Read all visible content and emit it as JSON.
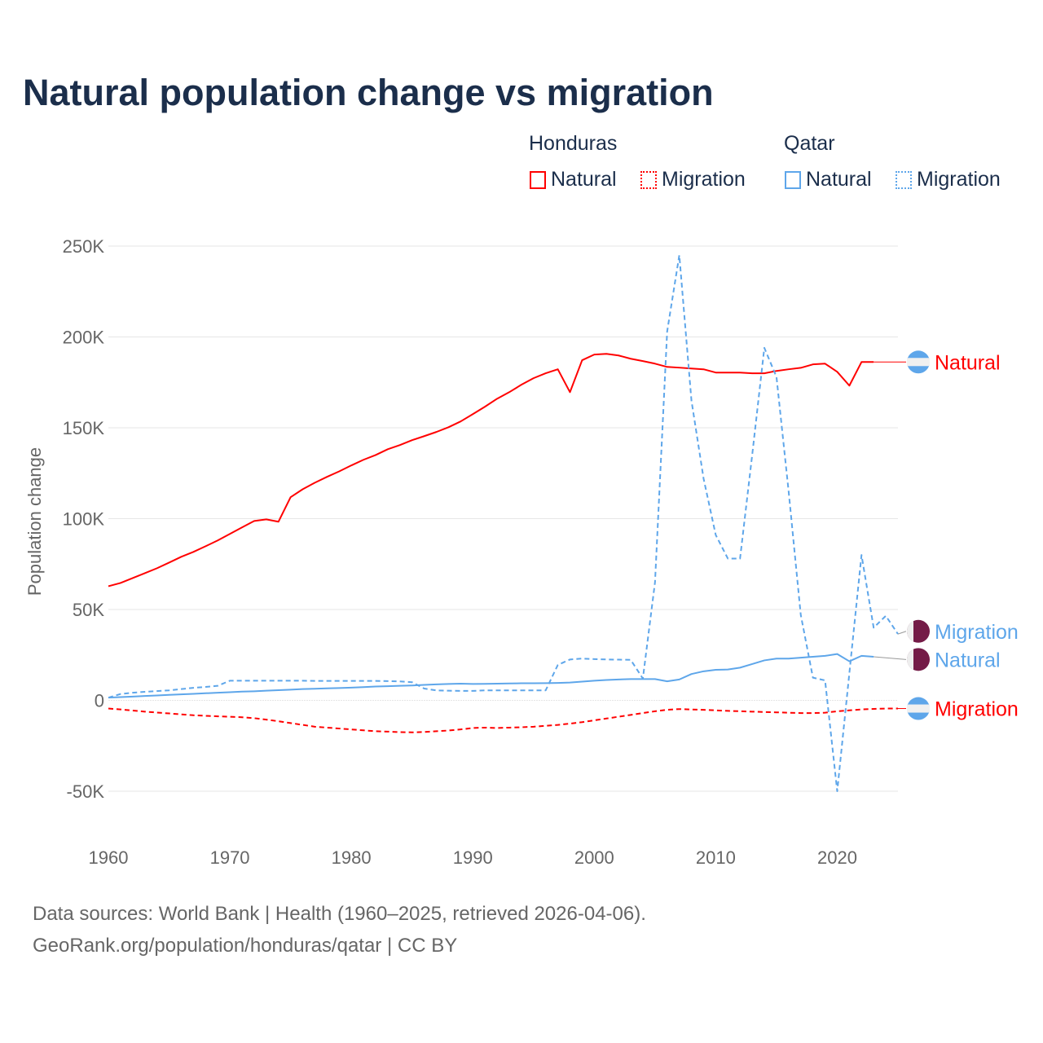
{
  "title": "Natural population change vs migration",
  "legend": {
    "groups": [
      {
        "name": "Honduras",
        "items": [
          {
            "label": "Natural",
            "color": "#ff0000",
            "style": "solid"
          },
          {
            "label": "Migration",
            "color": "#ff0000",
            "style": "dotted"
          }
        ]
      },
      {
        "name": "Qatar",
        "items": [
          {
            "label": "Natural",
            "color": "#5ea6ea",
            "style": "solid"
          },
          {
            "label": "Migration",
            "color": "#5ea6ea",
            "style": "dotted"
          }
        ]
      }
    ]
  },
  "footer": {
    "line1": "Data sources: World Bank | Health (1960–2025, retrieved 2026-04-06).",
    "line2": "GeoRank.org/population/honduras/qatar | CC BY"
  },
  "chart_data": {
    "type": "line",
    "title": "Natural population change vs migration",
    "xlabel": "",
    "ylabel": "Population change",
    "xlim": [
      1960,
      2025
    ],
    "ylim": [
      -50000,
      250000
    ],
    "x_ticks": [
      "1960",
      "1970",
      "1980",
      "1990",
      "2000",
      "2010",
      "2020"
    ],
    "y_ticks": [
      {
        "v": 250000,
        "label": "250K"
      },
      {
        "v": 200000,
        "label": "200K"
      },
      {
        "v": 150000,
        "label": "150K"
      },
      {
        "v": 100000,
        "label": "100K"
      },
      {
        "v": 50000,
        "label": "50K"
      },
      {
        "v": 0,
        "label": "0"
      },
      {
        "v": -50000,
        "label": "-50K"
      }
    ],
    "grid": true,
    "series": [
      {
        "name": "Honduras Natural",
        "end_label": "Natural",
        "country": "Honduras",
        "color": "#ff0000",
        "dash": false,
        "start": 1960,
        "values": [
          62800,
          64600,
          67300,
          70000,
          72700,
          75800,
          79000,
          81700,
          84800,
          88000,
          91600,
          95200,
          98700,
          99600,
          98300,
          111800,
          116200,
          119800,
          123000,
          126000,
          129300,
          132400,
          135000,
          138200,
          140500,
          143200,
          145400,
          147700,
          150300,
          153500,
          157500,
          161600,
          166000,
          169600,
          173700,
          177300,
          180000,
          182200,
          169600,
          187200,
          190300,
          190700,
          189800,
          188000,
          186700,
          185300,
          183500,
          183100,
          182600,
          182200,
          180400,
          180400,
          180400,
          180000,
          180000,
          181300,
          182200,
          183000,
          184900,
          185300,
          180800,
          173200,
          186200,
          186200
        ]
      },
      {
        "name": "Honduras Migration",
        "end_label": "Migration",
        "country": "Honduras",
        "color": "#ff0000",
        "dash": true,
        "start": 1960,
        "values": [
          -4500,
          -5000,
          -5600,
          -6200,
          -6700,
          -7200,
          -7700,
          -8200,
          -8500,
          -8800,
          -9000,
          -9300,
          -9800,
          -10600,
          -11500,
          -12500,
          -13500,
          -14500,
          -15000,
          -15500,
          -16000,
          -16500,
          -17000,
          -17200,
          -17500,
          -17600,
          -17400,
          -17000,
          -16600,
          -16000,
          -15200,
          -15000,
          -15200,
          -15000,
          -14800,
          -14500,
          -14000,
          -13500,
          -12800,
          -12000,
          -11000,
          -10000,
          -9000,
          -8000,
          -7000,
          -6000,
          -5200,
          -4800,
          -5000,
          -5200,
          -5500,
          -5800,
          -6000,
          -6200,
          -6400,
          -6600,
          -6800,
          -7000,
          -7000,
          -6800,
          -6000,
          -5500,
          -5000,
          -4700,
          -4500,
          -4500
        ]
      },
      {
        "name": "Qatar Natural",
        "end_label": "Natural",
        "country": "Qatar",
        "color": "#5ea6ea",
        "dash": false,
        "start": 1960,
        "values": [
          1500,
          1800,
          2100,
          2400,
          2700,
          3000,
          3300,
          3600,
          3900,
          4200,
          4500,
          4800,
          5000,
          5300,
          5600,
          5900,
          6200,
          6400,
          6600,
          6800,
          7000,
          7300,
          7600,
          7800,
          8000,
          8200,
          8500,
          8800,
          9000,
          9200,
          9000,
          9100,
          9200,
          9300,
          9400,
          9400,
          9500,
          9600,
          9800,
          10300,
          10800,
          11200,
          11500,
          11700,
          11700,
          11700,
          10500,
          11500,
          14500,
          16000,
          16800,
          17000,
          18000,
          20000,
          22000,
          23000,
          23000,
          23500,
          24000,
          24500,
          25500,
          21500,
          24500,
          24000
        ]
      },
      {
        "name": "Qatar Migration",
        "end_label": "Migration",
        "country": "Qatar",
        "color": "#5ea6ea",
        "dash": true,
        "start": 1960,
        "values": [
          1500,
          3500,
          4200,
          4700,
          5100,
          5500,
          6200,
          6900,
          7400,
          8000,
          10800,
          10800,
          10800,
          10800,
          10800,
          10800,
          10800,
          10700,
          10700,
          10700,
          10700,
          10700,
          10700,
          10600,
          10400,
          10000,
          6500,
          5500,
          5300,
          5200,
          5200,
          5500,
          5500,
          5500,
          5500,
          5500,
          5500,
          19500,
          22500,
          23000,
          22700,
          22500,
          22400,
          22300,
          12000,
          65000,
          203000,
          245000,
          165000,
          122000,
          91000,
          78000,
          78000,
          135000,
          194000,
          178000,
          115000,
          47000,
          12500,
          11000,
          -50000,
          15000,
          80000,
          40000,
          46500,
          36500
        ]
      }
    ]
  }
}
